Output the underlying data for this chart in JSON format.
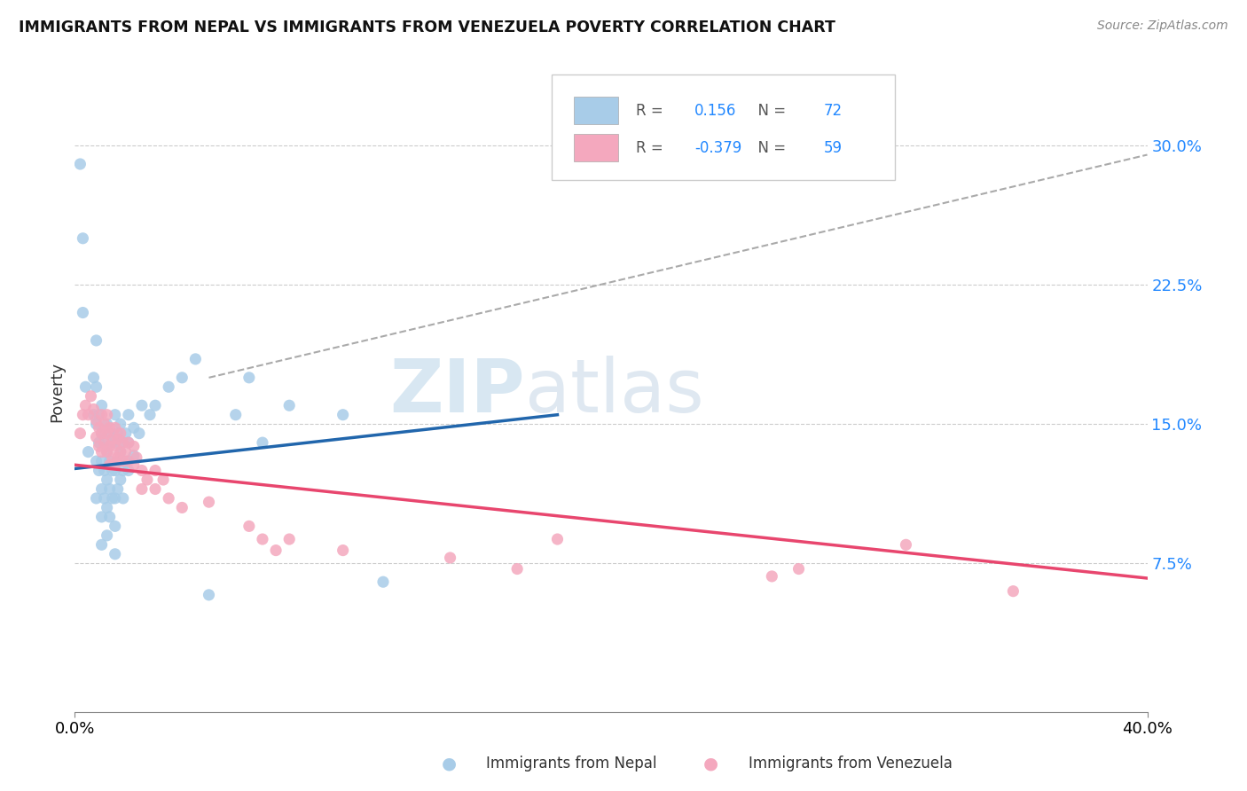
{
  "title": "IMMIGRANTS FROM NEPAL VS IMMIGRANTS FROM VENEZUELA POVERTY CORRELATION CHART",
  "source": "Source: ZipAtlas.com",
  "ylabel": "Poverty",
  "y_ticks": [
    0.075,
    0.15,
    0.225,
    0.3
  ],
  "y_tick_labels": [
    "7.5%",
    "15.0%",
    "22.5%",
    "30.0%"
  ],
  "xlim": [
    0.0,
    0.4
  ],
  "ylim": [
    -0.005,
    0.34
  ],
  "nepal_R": 0.156,
  "nepal_N": 72,
  "venezuela_R": -0.379,
  "venezuela_N": 59,
  "nepal_color": "#a8cce8",
  "venezuela_color": "#f4a8be",
  "nepal_line_color": "#2166ac",
  "venezuela_line_color": "#e8466e",
  "ref_line_color": "#aaaaaa",
  "nepal_line": [
    [
      0.0,
      0.126
    ],
    [
      0.18,
      0.155
    ]
  ],
  "venezuela_line": [
    [
      0.0,
      0.128
    ],
    [
      0.4,
      0.067
    ]
  ],
  "ref_line": [
    [
      0.05,
      0.175
    ],
    [
      0.4,
      0.295
    ]
  ],
  "nepal_scatter": [
    [
      0.002,
      0.29
    ],
    [
      0.003,
      0.25
    ],
    [
      0.003,
      0.21
    ],
    [
      0.004,
      0.17
    ],
    [
      0.005,
      0.135
    ],
    [
      0.007,
      0.175
    ],
    [
      0.007,
      0.155
    ],
    [
      0.008,
      0.195
    ],
    [
      0.008,
      0.17
    ],
    [
      0.008,
      0.15
    ],
    [
      0.008,
      0.13
    ],
    [
      0.008,
      0.11
    ],
    [
      0.009,
      0.155
    ],
    [
      0.009,
      0.14
    ],
    [
      0.009,
      0.125
    ],
    [
      0.01,
      0.16
    ],
    [
      0.01,
      0.145
    ],
    [
      0.01,
      0.13
    ],
    [
      0.01,
      0.115
    ],
    [
      0.01,
      0.1
    ],
    [
      0.01,
      0.085
    ],
    [
      0.011,
      0.14
    ],
    [
      0.011,
      0.125
    ],
    [
      0.011,
      0.11
    ],
    [
      0.012,
      0.15
    ],
    [
      0.012,
      0.135
    ],
    [
      0.012,
      0.12
    ],
    [
      0.012,
      0.105
    ],
    [
      0.012,
      0.09
    ],
    [
      0.013,
      0.145
    ],
    [
      0.013,
      0.13
    ],
    [
      0.013,
      0.115
    ],
    [
      0.013,
      0.1
    ],
    [
      0.014,
      0.14
    ],
    [
      0.014,
      0.125
    ],
    [
      0.014,
      0.11
    ],
    [
      0.015,
      0.155
    ],
    [
      0.015,
      0.14
    ],
    [
      0.015,
      0.125
    ],
    [
      0.015,
      0.11
    ],
    [
      0.015,
      0.095
    ],
    [
      0.015,
      0.08
    ],
    [
      0.016,
      0.145
    ],
    [
      0.016,
      0.13
    ],
    [
      0.016,
      0.115
    ],
    [
      0.017,
      0.15
    ],
    [
      0.017,
      0.135
    ],
    [
      0.017,
      0.12
    ],
    [
      0.018,
      0.14
    ],
    [
      0.018,
      0.125
    ],
    [
      0.018,
      0.11
    ],
    [
      0.019,
      0.145
    ],
    [
      0.019,
      0.13
    ],
    [
      0.02,
      0.155
    ],
    [
      0.02,
      0.14
    ],
    [
      0.02,
      0.125
    ],
    [
      0.022,
      0.148
    ],
    [
      0.022,
      0.133
    ],
    [
      0.024,
      0.145
    ],
    [
      0.025,
      0.16
    ],
    [
      0.028,
      0.155
    ],
    [
      0.03,
      0.16
    ],
    [
      0.035,
      0.17
    ],
    [
      0.04,
      0.175
    ],
    [
      0.045,
      0.185
    ],
    [
      0.05,
      0.058
    ],
    [
      0.06,
      0.155
    ],
    [
      0.065,
      0.175
    ],
    [
      0.07,
      0.14
    ],
    [
      0.08,
      0.16
    ],
    [
      0.1,
      0.155
    ],
    [
      0.115,
      0.065
    ]
  ],
  "venezuela_scatter": [
    [
      0.002,
      0.145
    ],
    [
      0.003,
      0.155
    ],
    [
      0.004,
      0.16
    ],
    [
      0.005,
      0.155
    ],
    [
      0.006,
      0.165
    ],
    [
      0.007,
      0.158
    ],
    [
      0.008,
      0.152
    ],
    [
      0.008,
      0.143
    ],
    [
      0.009,
      0.148
    ],
    [
      0.009,
      0.138
    ],
    [
      0.01,
      0.155
    ],
    [
      0.01,
      0.145
    ],
    [
      0.01,
      0.135
    ],
    [
      0.011,
      0.15
    ],
    [
      0.011,
      0.14
    ],
    [
      0.012,
      0.155
    ],
    [
      0.012,
      0.145
    ],
    [
      0.012,
      0.135
    ],
    [
      0.013,
      0.148
    ],
    [
      0.013,
      0.138
    ],
    [
      0.013,
      0.128
    ],
    [
      0.014,
      0.142
    ],
    [
      0.014,
      0.132
    ],
    [
      0.015,
      0.148
    ],
    [
      0.015,
      0.138
    ],
    [
      0.015,
      0.128
    ],
    [
      0.016,
      0.142
    ],
    [
      0.016,
      0.132
    ],
    [
      0.017,
      0.145
    ],
    [
      0.017,
      0.135
    ],
    [
      0.018,
      0.14
    ],
    [
      0.018,
      0.13
    ],
    [
      0.019,
      0.135
    ],
    [
      0.02,
      0.14
    ],
    [
      0.02,
      0.13
    ],
    [
      0.022,
      0.138
    ],
    [
      0.022,
      0.128
    ],
    [
      0.023,
      0.132
    ],
    [
      0.025,
      0.125
    ],
    [
      0.025,
      0.115
    ],
    [
      0.027,
      0.12
    ],
    [
      0.03,
      0.125
    ],
    [
      0.03,
      0.115
    ],
    [
      0.033,
      0.12
    ],
    [
      0.035,
      0.11
    ],
    [
      0.04,
      0.105
    ],
    [
      0.05,
      0.108
    ],
    [
      0.065,
      0.095
    ],
    [
      0.07,
      0.088
    ],
    [
      0.075,
      0.082
    ],
    [
      0.08,
      0.088
    ],
    [
      0.1,
      0.082
    ],
    [
      0.14,
      0.078
    ],
    [
      0.165,
      0.072
    ],
    [
      0.18,
      0.088
    ],
    [
      0.26,
      0.068
    ],
    [
      0.27,
      0.072
    ],
    [
      0.31,
      0.085
    ],
    [
      0.35,
      0.06
    ]
  ]
}
